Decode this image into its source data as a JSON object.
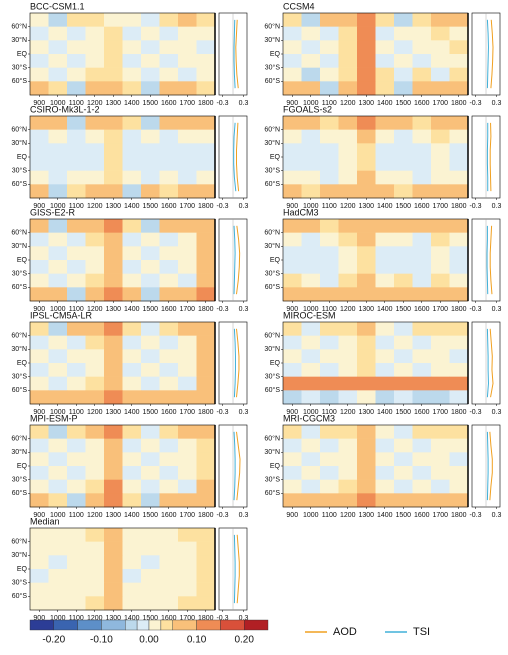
{
  "chart_data": {
    "type": "heatmap",
    "x": [
      900,
      1000,
      1100,
      1200,
      1300,
      1400,
      1500,
      1600,
      1700,
      1800
    ],
    "y": [
      75,
      45,
      15,
      -15,
      -45,
      -75
    ],
    "xlim": [
      850,
      1850
    ],
    "xticks": [
      900,
      1000,
      1100,
      1200,
      1300,
      1400,
      1500,
      1600,
      1700,
      1800
    ],
    "ylim": [
      -90,
      90
    ],
    "yticks": [
      {
        "value": 60,
        "label": "60°N"
      },
      {
        "value": 30,
        "label": "30°N"
      },
      {
        "value": 0,
        "label": "EQ"
      },
      {
        "value": -30,
        "label": "30°S"
      },
      {
        "value": -60,
        "label": "60°S"
      }
    ],
    "profile_y": [
      75,
      45,
      15,
      -15,
      -45,
      -75
    ],
    "profile_xlim": [
      -0.4,
      0.4
    ],
    "profile_xticks": [
      -0.3,
      0.3
    ],
    "legend": [
      {
        "name": "AOD",
        "color": "#f0a020"
      },
      {
        "name": "TSI",
        "color": "#40b0d8"
      }
    ],
    "colorbar": {
      "bounds": [
        -0.25,
        -0.2,
        -0.15,
        -0.1,
        -0.05,
        -0.025,
        0,
        0.025,
        0.05,
        0.1,
        0.15,
        0.2,
        0.25
      ],
      "colors": [
        "#2c3d96",
        "#3a64b0",
        "#5d8fc8",
        "#8fb8dd",
        "#bcd9ec",
        "#dcecf6",
        "#fbf3d2",
        "#fde1a0",
        "#f9c07a",
        "#ef8c55",
        "#d9503a",
        "#b11f24"
      ],
      "ticks": [
        {
          "value": -0.2,
          "label": "-0.20"
        },
        {
          "value": -0.1,
          "label": "-0.10"
        },
        {
          "value": 0,
          "label": "0.00"
        },
        {
          "value": 0.1,
          "label": "0.10"
        },
        {
          "value": 0.2,
          "label": "0.20"
        }
      ]
    },
    "panels": [
      {
        "title": "BCC-CSM1.1",
        "z": [
          [
            0.02,
            -0.03,
            0.03,
            0.04,
            0.01,
            0.02,
            -0.02,
            0.03,
            0.05,
            0.03
          ],
          [
            -0.01,
            0.01,
            -0.01,
            0.02,
            0.03,
            -0.01,
            0.01,
            -0.02,
            0.02,
            0.01
          ],
          [
            0.01,
            -0.01,
            0.01,
            0.02,
            0.03,
            0.01,
            -0.01,
            0.01,
            0.01,
            -0.01
          ],
          [
            -0.01,
            0.01,
            -0.01,
            0.02,
            0.03,
            -0.01,
            0.01,
            -0.01,
            0.01,
            0.01
          ],
          [
            0.01,
            -0.02,
            0.01,
            0.03,
            0.03,
            0.02,
            -0.01,
            0.02,
            -0.01,
            0.02
          ],
          [
            0.06,
            0.04,
            -0.03,
            0.08,
            0.05,
            0.03,
            -0.04,
            0.06,
            0.07,
            0.04
          ]
        ],
        "aod": [
          0.12,
          0.1,
          0.08,
          0.09,
          0.11,
          0.15
        ],
        "tsi": [
          0.05,
          0.04,
          0.03,
          0.03,
          0.04,
          0.06
        ]
      },
      {
        "title": "CCSM4",
        "z": [
          [
            0.04,
            -0.04,
            0.05,
            0.06,
            0.12,
            0.03,
            -0.03,
            0.04,
            0.06,
            0.05
          ],
          [
            -0.02,
            0.02,
            -0.01,
            0.03,
            0.1,
            -0.02,
            0.02,
            0.01,
            0.03,
            0.02
          ],
          [
            0.01,
            -0.02,
            0.02,
            0.03,
            0.11,
            0.02,
            -0.01,
            0.01,
            0.02,
            0.03
          ],
          [
            -0.01,
            0.01,
            -0.02,
            0.03,
            0.1,
            -0.01,
            0.02,
            -0.01,
            0.02,
            0.01
          ],
          [
            0.02,
            -0.03,
            0.02,
            0.04,
            0.11,
            0.03,
            -0.02,
            0.03,
            -0.02,
            0.03
          ],
          [
            0.07,
            0.05,
            -0.04,
            0.09,
            0.13,
            0.04,
            -0.05,
            0.07,
            0.08,
            0.05
          ]
        ],
        "aod": [
          0.15,
          0.18,
          0.2,
          0.19,
          0.17,
          0.14
        ],
        "tsi": [
          0.04,
          0.06,
          0.07,
          0.06,
          0.05,
          0.04
        ]
      },
      {
        "title": "CSIRO-Mk3L-1-2",
        "z": [
          [
            0.06,
            0.05,
            -0.03,
            0.07,
            0.08,
            0.04,
            -0.04,
            0.06,
            0.07,
            0.05
          ],
          [
            -0.01,
            0.01,
            -0.01,
            0.02,
            0.04,
            -0.01,
            0.01,
            -0.02,
            0.02,
            0.01
          ],
          [
            -0.02,
            -0.01,
            -0.02,
            -0.01,
            0.03,
            -0.02,
            -0.01,
            -0.02,
            -0.01,
            -0.02
          ],
          [
            -0.02,
            -0.01,
            -0.02,
            -0.01,
            0.03,
            -0.02,
            -0.01,
            -0.02,
            -0.01,
            -0.02
          ],
          [
            0.01,
            -0.02,
            0.01,
            0.02,
            0.04,
            0.01,
            -0.01,
            0.02,
            -0.01,
            0.02
          ],
          [
            0.05,
            -0.04,
            0.04,
            0.06,
            0.07,
            -0.03,
            0.05,
            0.04,
            0.06,
            0.05
          ]
        ],
        "aod": [
          0.14,
          0.12,
          0.1,
          0.1,
          0.12,
          0.16
        ],
        "tsi": [
          0.06,
          0.03,
          0.02,
          0.02,
          0.04,
          0.08
        ]
      },
      {
        "title": "FGOALS-s2",
        "z": [
          [
            0.06,
            0.05,
            0.04,
            0.07,
            0.1,
            0.05,
            0.06,
            0.04,
            0.08,
            0.06
          ],
          [
            0.01,
            -0.01,
            0.02,
            0.02,
            0.05,
            0.01,
            -0.01,
            0.02,
            0.03,
            0.01
          ],
          [
            -0.01,
            -0.02,
            -0.01,
            0.01,
            0.04,
            -0.01,
            -0.02,
            -0.01,
            0.01,
            -0.01
          ],
          [
            -0.01,
            -0.02,
            -0.01,
            0.01,
            0.04,
            -0.01,
            -0.02,
            -0.01,
            0.01,
            -0.01
          ],
          [
            0.01,
            0.02,
            -0.01,
            0.02,
            0.05,
            0.01,
            0.02,
            -0.01,
            0.02,
            0.01
          ],
          [
            0.05,
            0.04,
            0.06,
            0.07,
            0.09,
            0.05,
            0.04,
            0.06,
            0.07,
            0.06
          ]
        ],
        "aod": [
          0.13,
          0.14,
          0.12,
          0.12,
          0.13,
          0.14
        ],
        "tsi": [
          0.05,
          0.05,
          0.04,
          0.04,
          0.05,
          0.05
        ]
      },
      {
        "title": "GISS-E2-R",
        "z": [
          [
            0.05,
            -0.04,
            0.06,
            0.07,
            0.11,
            0.04,
            -0.03,
            0.05,
            0.06,
            0.09
          ],
          [
            -0.02,
            0.01,
            -0.01,
            0.03,
            0.08,
            -0.01,
            0.01,
            -0.01,
            0.02,
            0.07
          ],
          [
            0.01,
            -0.01,
            0.01,
            0.02,
            0.07,
            0.01,
            -0.01,
            0.01,
            0.01,
            0.06
          ],
          [
            -0.01,
            0.01,
            -0.01,
            0.02,
            0.07,
            -0.01,
            0.01,
            -0.01,
            0.01,
            0.06
          ],
          [
            0.02,
            -0.02,
            0.01,
            0.03,
            0.08,
            0.02,
            -0.01,
            0.02,
            -0.01,
            0.07
          ],
          [
            0.08,
            0.06,
            -0.04,
            0.09,
            0.12,
            0.05,
            -0.05,
            0.07,
            0.08,
            0.1
          ]
        ],
        "aod": [
          0.11,
          0.16,
          0.19,
          0.18,
          0.15,
          0.1
        ],
        "tsi": [
          0.03,
          0.05,
          0.06,
          0.05,
          0.04,
          0.03
        ]
      },
      {
        "title": "HadCM3",
        "z": [
          [
            0.05,
            0.06,
            0.04,
            0.07,
            0.08,
            0.06,
            0.05,
            0.06,
            0.07,
            0.06
          ],
          [
            0.02,
            -0.02,
            0.02,
            0.03,
            0.05,
            0.01,
            0.02,
            -0.02,
            0.03,
            0.02
          ],
          [
            -0.01,
            -0.02,
            -0.01,
            0.01,
            0.03,
            -0.01,
            -0.02,
            -0.01,
            0.01,
            -0.01
          ],
          [
            -0.01,
            -0.01,
            -0.02,
            0.01,
            0.03,
            -0.01,
            -0.01,
            -0.02,
            0.01,
            -0.01
          ],
          [
            0.03,
            0.02,
            -0.01,
            0.04,
            0.05,
            0.02,
            0.03,
            -0.01,
            0.03,
            0.02
          ],
          [
            0.07,
            0.06,
            0.05,
            0.08,
            0.09,
            0.06,
            0.07,
            0.05,
            0.08,
            0.07
          ]
        ],
        "aod": [
          0.16,
          0.14,
          0.12,
          0.12,
          0.14,
          0.17
        ],
        "tsi": [
          0.04,
          0.04,
          0.03,
          0.03,
          0.04,
          0.05
        ]
      },
      {
        "title": "IPSL-CM5A-LR",
        "z": [
          [
            0.04,
            -0.03,
            0.05,
            0.06,
            0.1,
            0.03,
            -0.02,
            0.04,
            0.05,
            0.08
          ],
          [
            -0.01,
            0.01,
            -0.01,
            0.03,
            0.08,
            -0.01,
            0.01,
            -0.01,
            0.02,
            0.06
          ],
          [
            0.01,
            -0.01,
            0.01,
            0.02,
            0.07,
            0.01,
            -0.01,
            0.01,
            0.01,
            0.05
          ],
          [
            -0.01,
            0.01,
            -0.01,
            0.02,
            0.07,
            -0.01,
            0.01,
            -0.01,
            0.01,
            0.05
          ],
          [
            0.02,
            -0.02,
            0.01,
            0.03,
            0.08,
            0.02,
            -0.01,
            0.02,
            -0.01,
            0.06
          ],
          [
            0.06,
            0.05,
            0.07,
            0.08,
            0.11,
            0.05,
            0.06,
            0.07,
            0.08,
            0.09
          ]
        ],
        "aod": [
          0.1,
          0.14,
          0.17,
          0.17,
          0.14,
          0.1
        ],
        "tsi": [
          0.04,
          0.06,
          0.07,
          0.07,
          0.06,
          0.04
        ]
      },
      {
        "title": "MIROC-ESM",
        "z": [
          [
            0.03,
            -0.02,
            0.03,
            0.04,
            0.05,
            0.02,
            -0.02,
            0.03,
            0.04,
            0.03
          ],
          [
            -0.01,
            0.01,
            -0.01,
            0.02,
            0.03,
            -0.01,
            0.01,
            -0.01,
            0.02,
            0.01
          ],
          [
            0.01,
            -0.01,
            0.01,
            0.02,
            0.03,
            0.01,
            -0.01,
            0.01,
            0.01,
            -0.01
          ],
          [
            -0.01,
            0.01,
            -0.01,
            0.02,
            0.03,
            -0.01,
            0.01,
            -0.01,
            0.01,
            0.01
          ],
          [
            0.11,
            0.12,
            0.1,
            0.13,
            0.14,
            0.11,
            0.12,
            0.1,
            0.12,
            0.11
          ],
          [
            -0.03,
            -0.02,
            -0.04,
            -0.02,
            0.02,
            -0.03,
            -0.02,
            -0.04,
            -0.03,
            -0.02
          ]
        ],
        "aod": [
          0.12,
          0.15,
          0.18,
          0.17,
          0.2,
          0.13
        ],
        "tsi": [
          0.04,
          0.05,
          0.06,
          0.06,
          0.07,
          0.04
        ]
      },
      {
        "title": "MPI-ESM-P",
        "z": [
          [
            0.04,
            -0.03,
            0.04,
            0.05,
            0.1,
            0.03,
            -0.02,
            0.04,
            0.05,
            0.06
          ],
          [
            -0.01,
            0.01,
            -0.01,
            0.02,
            0.09,
            -0.01,
            0.01,
            -0.01,
            0.02,
            0.04
          ],
          [
            0.01,
            -0.01,
            0.01,
            0.02,
            0.09,
            0.01,
            -0.01,
            0.01,
            0.01,
            0.04
          ],
          [
            -0.01,
            0.01,
            -0.01,
            0.02,
            0.09,
            -0.01,
            0.01,
            -0.01,
            0.01,
            0.04
          ],
          [
            0.02,
            -0.02,
            0.01,
            0.03,
            0.1,
            0.02,
            -0.01,
            0.02,
            -0.01,
            0.05
          ],
          [
            0.05,
            0.04,
            -0.03,
            0.06,
            0.11,
            0.04,
            -0.03,
            0.05,
            0.06,
            0.07
          ]
        ],
        "aod": [
          0.1,
          0.15,
          0.2,
          0.19,
          0.15,
          0.11
        ],
        "tsi": [
          0.03,
          0.05,
          0.06,
          0.06,
          0.05,
          0.03
        ]
      },
      {
        "title": "MRI-CGCM3",
        "z": [
          [
            0.03,
            -0.02,
            0.03,
            0.04,
            0.08,
            0.02,
            -0.02,
            0.03,
            0.04,
            0.03
          ],
          [
            -0.01,
            0.01,
            -0.01,
            0.02,
            0.07,
            -0.01,
            0.01,
            -0.01,
            0.02,
            0.01
          ],
          [
            0.01,
            -0.01,
            0.01,
            0.02,
            0.07,
            0.01,
            -0.01,
            0.01,
            0.01,
            -0.01
          ],
          [
            -0.01,
            0.01,
            -0.01,
            0.02,
            0.07,
            -0.01,
            0.01,
            -0.01,
            0.01,
            0.01
          ],
          [
            0.01,
            -0.02,
            0.01,
            0.03,
            0.08,
            0.02,
            -0.01,
            0.02,
            -0.01,
            0.02
          ],
          [
            0.06,
            0.05,
            0.07,
            0.08,
            0.1,
            0.05,
            0.06,
            0.07,
            0.08,
            0.06
          ]
        ],
        "aod": [
          0.11,
          0.14,
          0.18,
          0.18,
          0.14,
          0.11
        ],
        "tsi": [
          0.04,
          0.05,
          0.06,
          0.06,
          0.05,
          0.04
        ]
      },
      {
        "title": "Median",
        "z": [
          [
            0.02,
            0.01,
            0.02,
            0.03,
            0.07,
            0.02,
            0.01,
            0.02,
            0.03,
            0.04
          ],
          [
            0.01,
            0.01,
            0.01,
            0.02,
            0.06,
            0.01,
            0.01,
            0.01,
            0.02,
            0.03
          ],
          [
            0.01,
            -0.01,
            0.01,
            0.02,
            0.06,
            0.01,
            -0.01,
            0.01,
            0.01,
            0.03
          ],
          [
            -0.01,
            0.01,
            0.01,
            0.02,
            0.06,
            -0.01,
            0.01,
            0.01,
            0.01,
            0.03
          ],
          [
            0.01,
            0.01,
            0.01,
            0.02,
            0.06,
            0.01,
            0.01,
            0.01,
            0.02,
            0.03
          ],
          [
            0.02,
            0.01,
            0.02,
            0.03,
            0.07,
            0.02,
            0.01,
            0.02,
            0.03,
            0.04
          ]
        ],
        "aod": [
          0.12,
          0.15,
          0.18,
          0.18,
          0.15,
          0.12
        ],
        "tsi": [
          0.04,
          0.05,
          0.06,
          0.06,
          0.05,
          0.04
        ]
      }
    ]
  }
}
